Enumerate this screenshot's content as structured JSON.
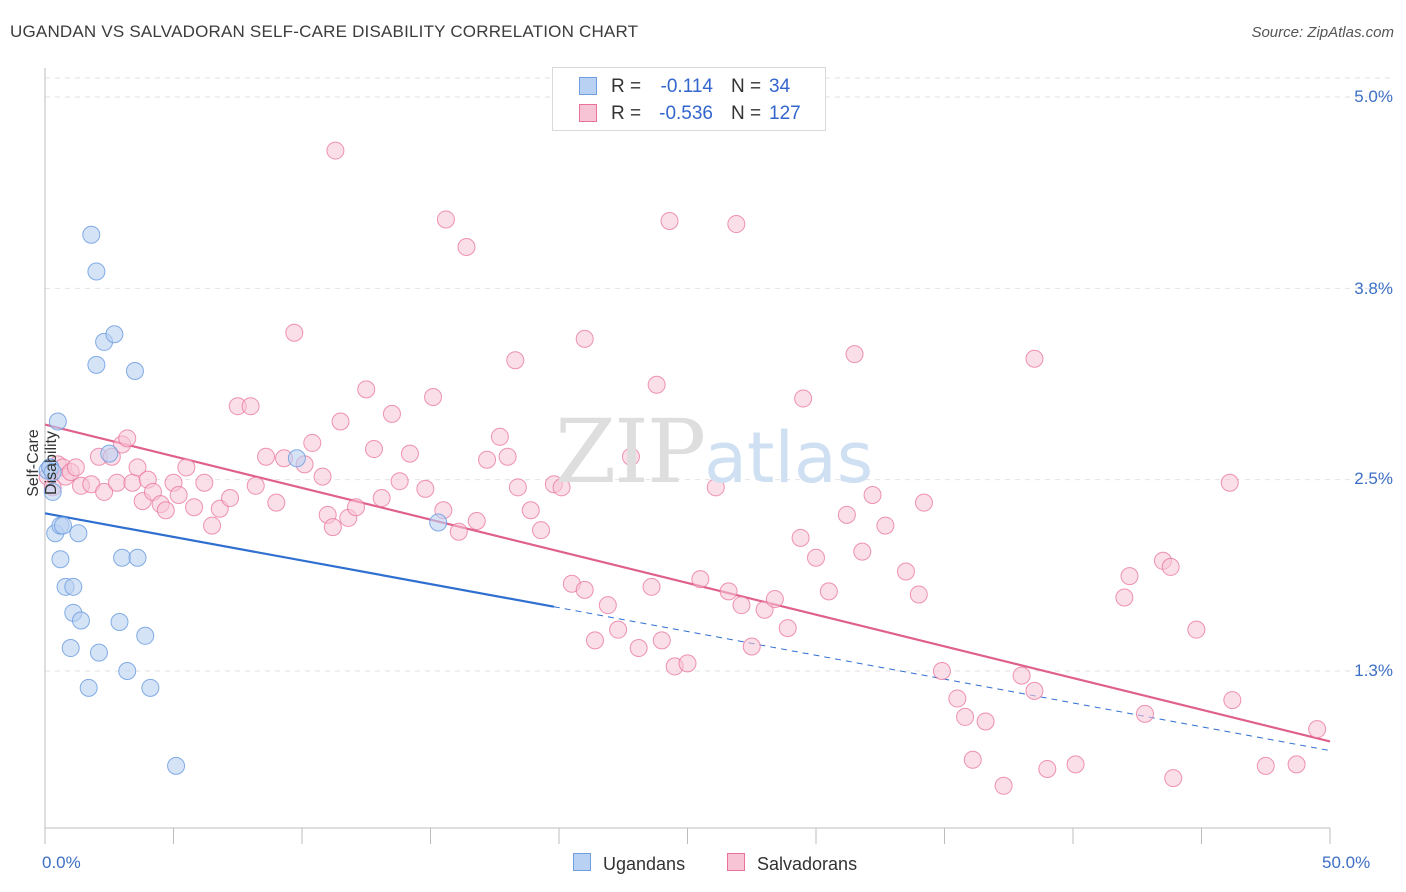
{
  "title": "UGANDAN VS SALVADORAN SELF-CARE DISABILITY CORRELATION CHART",
  "source": "Source: ZipAtlas.com",
  "watermark": {
    "zip": "ZIP",
    "atlas": "atlas"
  },
  "legend_top": {
    "rows": [
      {
        "r_label": "R =",
        "r_value": "-0.114",
        "n_label": "N =",
        "n_value": "34"
      },
      {
        "r_label": "R =",
        "r_value": "-0.536",
        "n_label": "N =",
        "n_value": "127"
      }
    ]
  },
  "colors": {
    "ugandans": "#6f9fe0",
    "ugandans_fill": "#b9d1f2",
    "salvadorans": "#e8729b",
    "salvadorans_fill": "#f7c4d5",
    "tick_text": "#3d6fc4"
  },
  "chart_data": {
    "type": "scatter",
    "title": "UGANDAN VS SALVADORAN SELF-CARE DISABILITY CORRELATION CHART",
    "xlabel": "",
    "ylabel": "Self-Care Disability",
    "xlim": [
      0,
      50
    ],
    "ylim": [
      0,
      5.2
    ],
    "x_tick_labels": [
      "0.0%",
      "50.0%"
    ],
    "y_ticks": [
      1.25,
      2.5,
      3.75,
      5.0
    ],
    "y_tick_labels": [
      "1.3%",
      "2.5%",
      "3.8%",
      "5.0%"
    ],
    "grid": true,
    "legend_position": "bottom-center",
    "series": [
      {
        "name": "Ugandans",
        "trend": {
          "x0": 0.0,
          "y0": 2.28,
          "x1": 19.8,
          "y1": 1.67,
          "dashed_to_x": 50,
          "dashed_to_y": 0.73
        },
        "points": [
          [
            0.2,
            2.58
          ],
          [
            0.3,
            2.42
          ],
          [
            0.4,
            2.15
          ],
          [
            0.5,
            2.88
          ],
          [
            0.6,
            2.2
          ],
          [
            0.7,
            2.2
          ],
          [
            0.6,
            1.98
          ],
          [
            0.8,
            1.8
          ],
          [
            1.1,
            1.8
          ],
          [
            1.1,
            1.63
          ],
          [
            1.0,
            1.4
          ],
          [
            1.3,
            2.15
          ],
          [
            1.4,
            1.58
          ],
          [
            1.7,
            1.14
          ],
          [
            1.8,
            4.1
          ],
          [
            2.0,
            3.86
          ],
          [
            2.0,
            3.25
          ],
          [
            2.1,
            1.37
          ],
          [
            2.3,
            3.4
          ],
          [
            2.5,
            2.67
          ],
          [
            2.7,
            3.45
          ],
          [
            2.9,
            1.57
          ],
          [
            3.0,
            1.99
          ],
          [
            3.2,
            1.25
          ],
          [
            3.5,
            3.21
          ],
          [
            3.6,
            1.99
          ],
          [
            3.9,
            1.48
          ],
          [
            4.1,
            1.14
          ],
          [
            5.1,
            0.63
          ],
          [
            9.8,
            2.64
          ],
          [
            15.3,
            2.22
          ],
          [
            0.1,
            2.56
          ],
          [
            0.2,
            2.58
          ],
          [
            0.3,
            2.55
          ]
        ]
      },
      {
        "name": "Salvadorans",
        "trend": {
          "x0": 0.0,
          "y0": 2.86,
          "x1": 50,
          "y1": 0.79
        },
        "points": [
          [
            0.1,
            2.52
          ],
          [
            0.3,
            2.45
          ],
          [
            0.5,
            2.6
          ],
          [
            0.7,
            2.58
          ],
          [
            0.8,
            2.52
          ],
          [
            1.0,
            2.55
          ],
          [
            1.2,
            2.58
          ],
          [
            1.4,
            2.46
          ],
          [
            1.8,
            2.47
          ],
          [
            2.1,
            2.65
          ],
          [
            2.3,
            2.42
          ],
          [
            2.6,
            2.65
          ],
          [
            2.8,
            2.48
          ],
          [
            3.0,
            2.73
          ],
          [
            3.2,
            2.77
          ],
          [
            3.4,
            2.48
          ],
          [
            3.6,
            2.58
          ],
          [
            3.8,
            2.36
          ],
          [
            4.0,
            2.5
          ],
          [
            4.2,
            2.42
          ],
          [
            4.5,
            2.34
          ],
          [
            4.7,
            2.3
          ],
          [
            5.0,
            2.48
          ],
          [
            5.2,
            2.4
          ],
          [
            5.5,
            2.58
          ],
          [
            5.8,
            2.32
          ],
          [
            6.2,
            2.48
          ],
          [
            6.5,
            2.2
          ],
          [
            6.8,
            2.31
          ],
          [
            7.2,
            2.38
          ],
          [
            7.5,
            2.98
          ],
          [
            8.0,
            2.98
          ],
          [
            8.2,
            2.46
          ],
          [
            8.6,
            2.65
          ],
          [
            9.0,
            2.35
          ],
          [
            9.3,
            2.64
          ],
          [
            9.7,
            3.46
          ],
          [
            10.1,
            2.6
          ],
          [
            10.4,
            2.74
          ],
          [
            10.8,
            2.52
          ],
          [
            11.0,
            2.27
          ],
          [
            11.2,
            2.19
          ],
          [
            11.5,
            2.88
          ],
          [
            11.8,
            2.25
          ],
          [
            12.1,
            2.32
          ],
          [
            12.5,
            3.09
          ],
          [
            12.8,
            2.7
          ],
          [
            13.1,
            2.38
          ],
          [
            13.5,
            2.93
          ],
          [
            13.8,
            2.49
          ],
          [
            14.2,
            2.67
          ],
          [
            14.8,
            2.44
          ],
          [
            15.1,
            3.04
          ],
          [
            15.5,
            2.3
          ],
          [
            16.1,
            2.16
          ],
          [
            16.8,
            2.23
          ],
          [
            17.2,
            2.63
          ],
          [
            17.7,
            2.78
          ],
          [
            18.0,
            2.65
          ],
          [
            18.4,
            2.45
          ],
          [
            18.9,
            2.3
          ],
          [
            19.3,
            2.17
          ],
          [
            19.8,
            2.47
          ],
          [
            20.1,
            2.45
          ],
          [
            20.5,
            1.82
          ],
          [
            21.0,
            1.78
          ],
          [
            21.4,
            1.45
          ],
          [
            21.9,
            1.68
          ],
          [
            22.3,
            1.52
          ],
          [
            22.8,
            2.65
          ],
          [
            23.1,
            1.4
          ],
          [
            23.6,
            1.8
          ],
          [
            24.0,
            1.45
          ],
          [
            24.5,
            1.28
          ],
          [
            25.0,
            1.3
          ],
          [
            25.5,
            1.85
          ],
          [
            26.1,
            2.45
          ],
          [
            26.6,
            1.77
          ],
          [
            27.1,
            1.68
          ],
          [
            27.5,
            1.41
          ],
          [
            28.0,
            1.65
          ],
          [
            28.4,
            1.72
          ],
          [
            28.9,
            1.53
          ],
          [
            29.4,
            2.12
          ],
          [
            30.0,
            1.99
          ],
          [
            30.5,
            1.77
          ],
          [
            31.2,
            2.27
          ],
          [
            31.8,
            2.03
          ],
          [
            32.2,
            2.4
          ],
          [
            32.7,
            2.2
          ],
          [
            33.5,
            1.9
          ],
          [
            34.0,
            1.75
          ],
          [
            34.9,
            1.25
          ],
          [
            35.5,
            1.07
          ],
          [
            35.8,
            0.95
          ],
          [
            36.1,
            0.67
          ],
          [
            36.6,
            0.92
          ],
          [
            37.3,
            0.5
          ],
          [
            38.0,
            1.22
          ],
          [
            38.5,
            1.12
          ],
          [
            39.0,
            0.61
          ],
          [
            40.1,
            0.64
          ],
          [
            42.0,
            1.73
          ],
          [
            43.5,
            1.97
          ],
          [
            44.8,
            1.52
          ],
          [
            46.2,
            1.06
          ],
          [
            47.5,
            0.63
          ],
          [
            48.7,
            0.64
          ],
          [
            49.5,
            0.87
          ],
          [
            11.3,
            4.65
          ],
          [
            15.6,
            4.2
          ],
          [
            16.4,
            4.02
          ],
          [
            18.3,
            3.28
          ],
          [
            21.0,
            3.42
          ],
          [
            23.8,
            3.12
          ],
          [
            24.3,
            4.19
          ],
          [
            26.9,
            4.17
          ],
          [
            29.5,
            3.03
          ],
          [
            31.5,
            3.32
          ],
          [
            34.2,
            2.35
          ],
          [
            38.5,
            3.29
          ],
          [
            42.2,
            1.87
          ],
          [
            42.8,
            0.97
          ],
          [
            43.9,
            0.55
          ],
          [
            46.1,
            2.48
          ],
          [
            43.8,
            1.93
          ]
        ]
      }
    ]
  },
  "legend_bottom": {
    "ugandans": "Ugandans",
    "salvadorans": "Salvadorans"
  }
}
